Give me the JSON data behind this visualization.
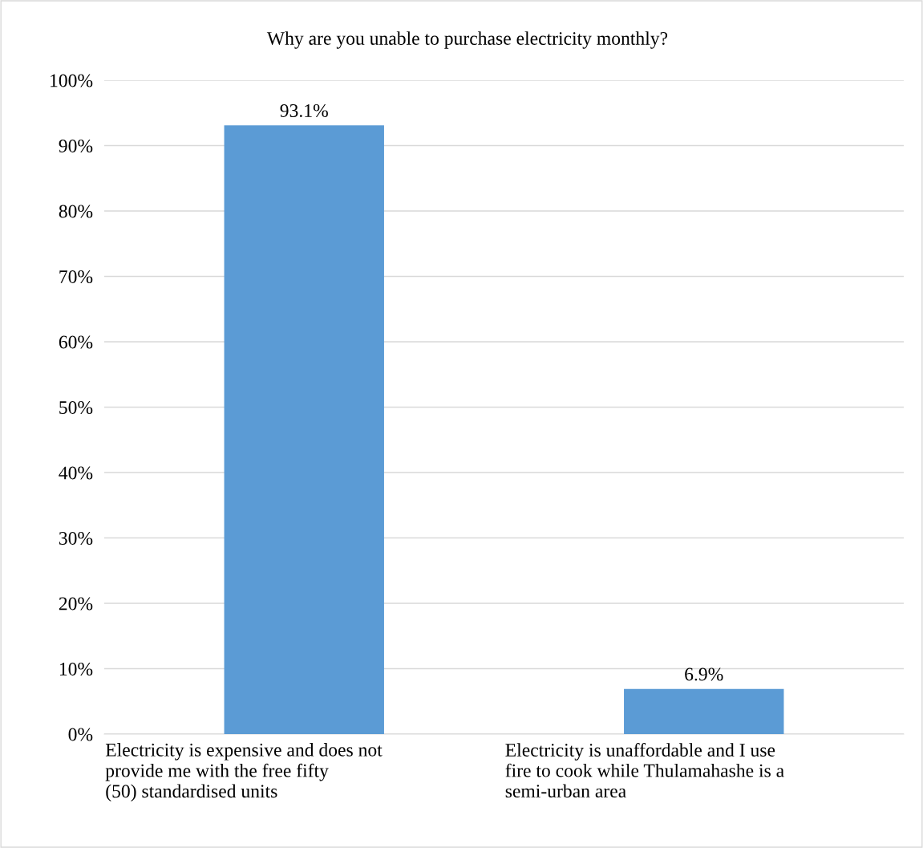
{
  "chart_data": {
    "type": "bar",
    "title": "Why are you unable to purchase electricity monthly?",
    "categories": [
      "Electricity is expensive and does not\nprovide me with the free fifty\n(50) standardised units",
      "Electricity is unaffordable and I use\nfire to cook while Thulamahashe is a\nsemi-urban area"
    ],
    "values": [
      93.1,
      6.9
    ],
    "color": "#5b9bd5",
    "value_labels": [
      "93.1%",
      "6.9%"
    ],
    "ylim": [
      0,
      100
    ],
    "yticks": [
      {
        "value": 0,
        "label": "0%"
      },
      {
        "value": 10,
        "label": "10%"
      },
      {
        "value": 20,
        "label": "20%"
      },
      {
        "value": 30,
        "label": "30%"
      },
      {
        "value": 40,
        "label": "40%"
      },
      {
        "value": 50,
        "label": "50%"
      },
      {
        "value": 60,
        "label": "60%"
      },
      {
        "value": 70,
        "label": "70%"
      },
      {
        "value": 80,
        "label": "80%"
      },
      {
        "value": 90,
        "label": "90%"
      },
      {
        "value": 100,
        "label": "100%"
      }
    ],
    "grid": "y",
    "legend": false
  }
}
